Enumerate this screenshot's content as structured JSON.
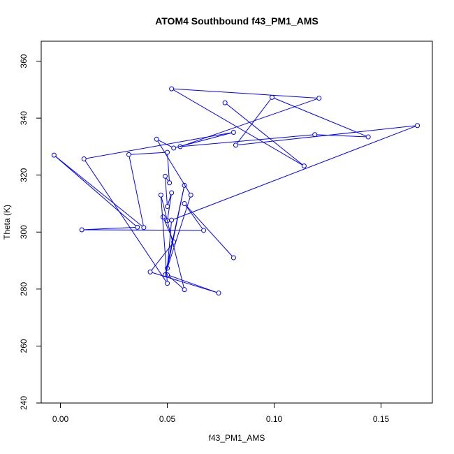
{
  "chart_data": {
    "type": "scatter",
    "title": "ATOM4 Southbound f43_PM1_AMS",
    "xlabel": "f43_PM1_AMS",
    "ylabel": "Theta (K)",
    "xlim": [
      -0.009,
      0.174
    ],
    "ylim": [
      240,
      367
    ],
    "x_ticks": [
      0.0,
      0.05,
      0.1,
      0.15
    ],
    "x_tick_labels": [
      "0.00",
      "0.05",
      "0.10",
      "0.15"
    ],
    "y_ticks": [
      240,
      260,
      280,
      300,
      320,
      340,
      360
    ],
    "y_tick_labels": [
      "240",
      "260",
      "280",
      "300",
      "320",
      "340",
      "360"
    ],
    "grid": false,
    "legend": "none",
    "series": [
      {
        "style": "points-connected",
        "color": "#0000ff",
        "x": [
          0.081,
          0.058,
          0.067,
          0.01,
          0.036,
          -0.003,
          0.039,
          0.032,
          0.05,
          0.051,
          0.049,
          0.05,
          0.052,
          0.05,
          0.048,
          0.053,
          0.042,
          0.074,
          0.05,
          0.058,
          0.047,
          0.05,
          0.011,
          0.081,
          0.053,
          0.045,
          0.061,
          0.049,
          0.058,
          0.05,
          0.052,
          0.167,
          0.082,
          0.099,
          0.144,
          0.119,
          0.056,
          0.121,
          0.052,
          0.114,
          0.077
        ],
        "y": [
          291.0,
          310.0,
          300.6,
          300.8,
          301.7,
          327.0,
          301.6,
          327.2,
          328.0,
          317.3,
          319.6,
          309.0,
          313.8,
          304.0,
          305.3,
          296.5,
          286.0,
          278.6,
          285.0,
          279.8,
          313.0,
          282.0,
          325.7,
          335.0,
          329.5,
          332.6,
          313.0,
          285.0,
          316.4,
          287.3,
          304.2,
          337.4,
          330.5,
          347.3,
          333.4,
          334.2,
          330.0,
          347.0,
          350.3,
          323.2,
          345.4
        ]
      }
    ]
  }
}
